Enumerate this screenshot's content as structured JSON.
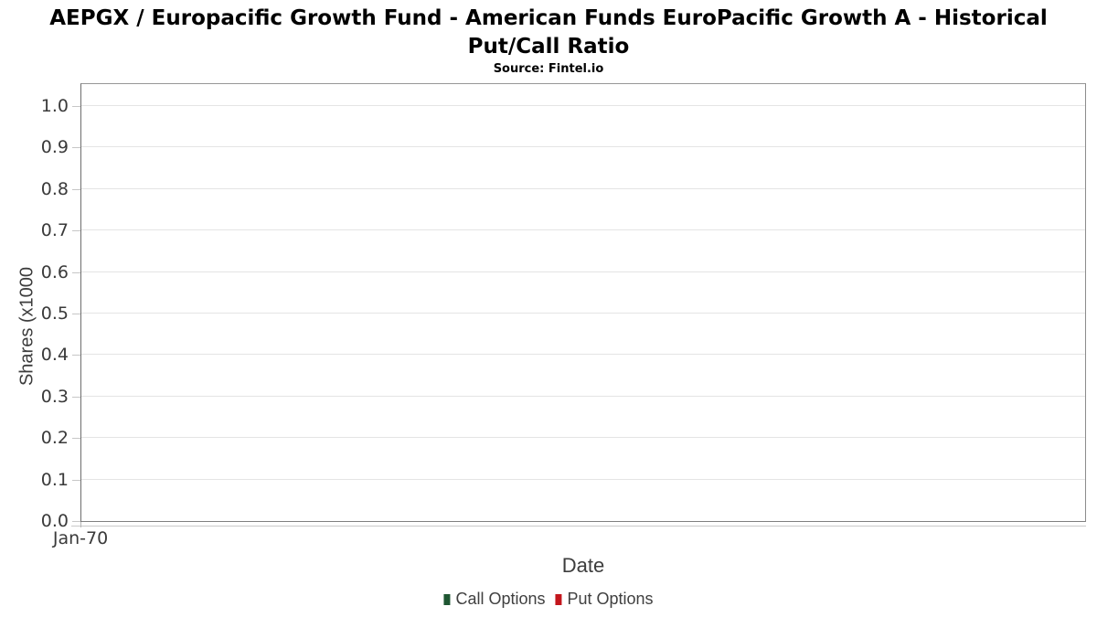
{
  "page": {
    "background": "#ffffff"
  },
  "header": {
    "title_line1": "AEPGX / Europacific Growth Fund - American Funds EuroPacific Growth A - Historical",
    "title_line2": "Put/Call Ratio",
    "source": "Source: Fintel.io"
  },
  "chart_data": {
    "type": "line",
    "title": "AEPGX / Europacific Growth Fund - American Funds EuroPacific Growth A - Historical Put/Call Ratio",
    "subtitle": "Source: Fintel.io",
    "xlabel": "Date",
    "ylabel": "Shares (x1000",
    "x_ticks": [
      "Jan-70"
    ],
    "y_ticks": [
      "0.0",
      "0.1",
      "0.2",
      "0.3",
      "0.4",
      "0.5",
      "0.6",
      "0.7",
      "0.8",
      "0.9",
      "1.0"
    ],
    "ylim": [
      0,
      1.053
    ],
    "grid": "horizontal",
    "legend_position": "bottom",
    "series": [
      {
        "name": "Call Options",
        "color": "#1f5632",
        "values": []
      },
      {
        "name": "Put Options",
        "color": "#c3161c",
        "values": []
      }
    ],
    "colors": {
      "gridline": "#e4e4e4",
      "plot_border": "#8c8c8c",
      "tick_text": "#3a3a3a",
      "axis_title_text": "#3d3d3d",
      "legend_text": "#404040"
    }
  }
}
